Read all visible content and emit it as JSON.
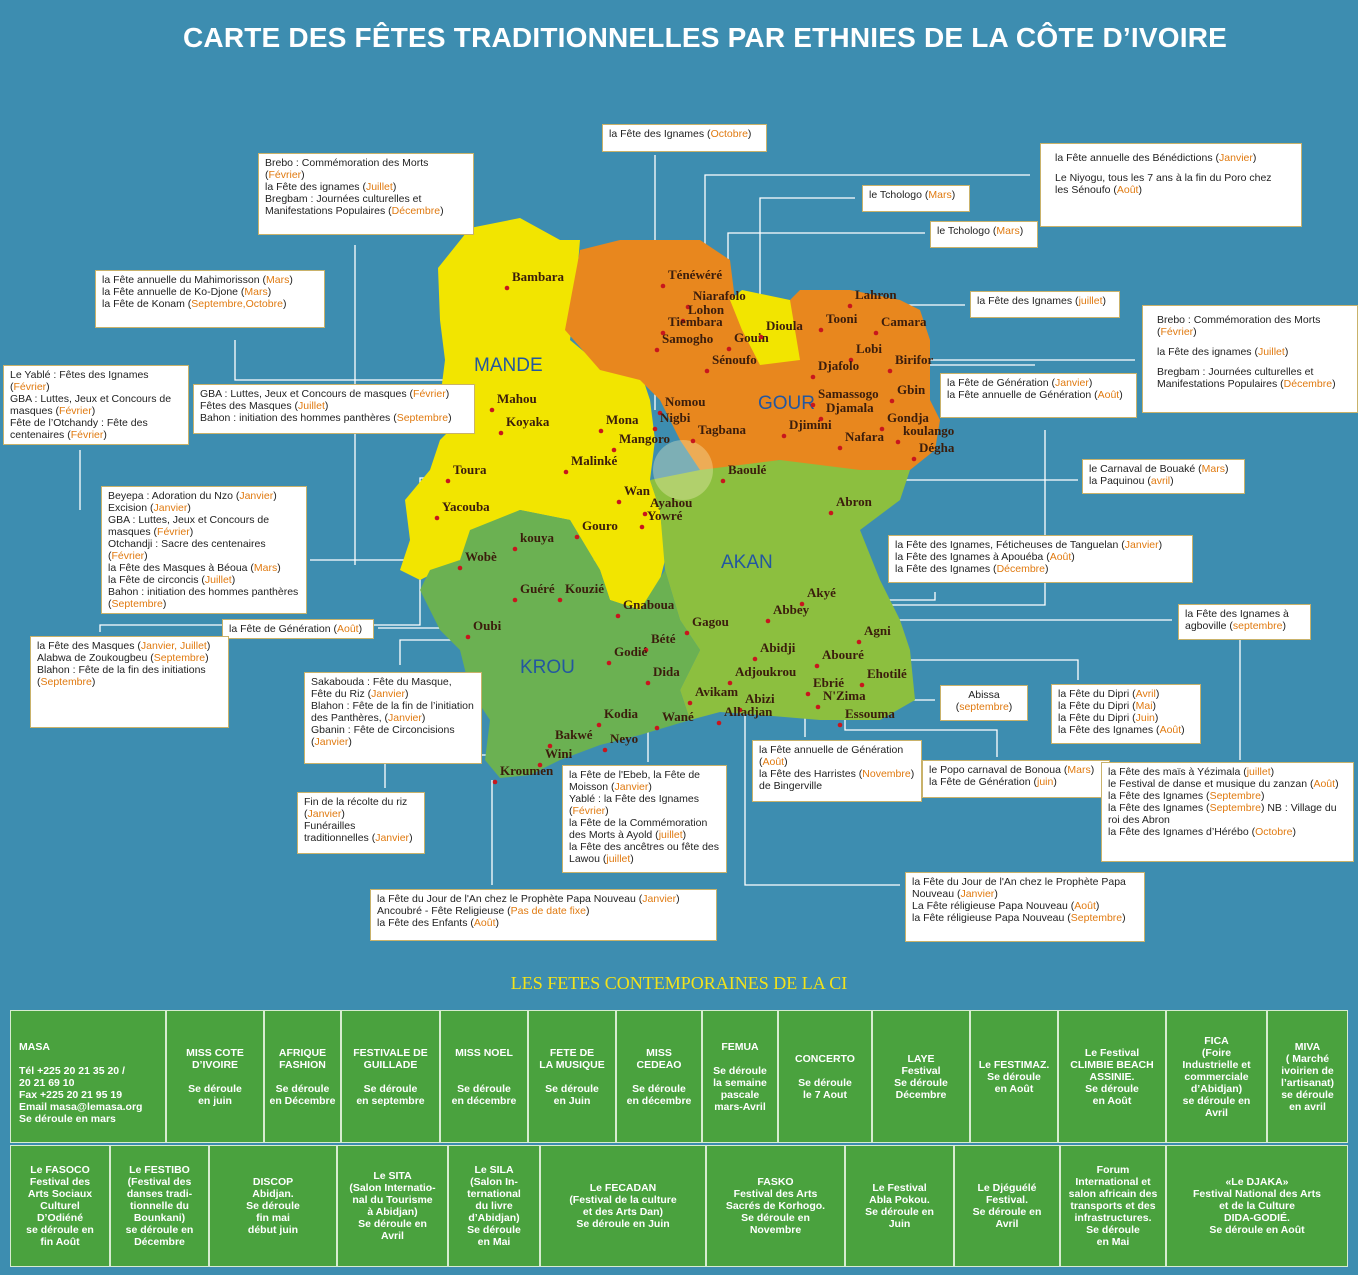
{
  "title": "CARTE DES FÊTES TRADITIONNELLES PAR ETHNIES DE LA CÔTE D’IVOIRE",
  "regions": [
    "MANDE",
    "GOUR",
    "AKAN",
    "KROU"
  ],
  "groups": [
    "Bambara",
    "Ténéwéré",
    "Niarafolo",
    "Lohon",
    "Tiembara",
    "Samogho",
    "Gouin",
    "Dioula",
    "Sénoufo",
    "Lahron",
    "Tooni",
    "Camara",
    "Lobi",
    "Birifor",
    "Djafolo",
    "Gbin",
    "Samassogo",
    "Djamala",
    "Gondja",
    "Nafara",
    "koulango",
    "Dégha",
    "Djimini",
    "Nomou",
    "Nigbi",
    "Tagbana",
    "Mona",
    "Mangoro",
    "Mahou",
    "Koyaka",
    "Malinké",
    "Toura",
    "Yacouba",
    "Baoulé",
    "Wan",
    "Ayahou",
    "Yowré",
    "Abron",
    "Gouro",
    "kouya",
    "Wobè",
    "Guéré",
    "Kouzié",
    "Gnaboua",
    "Gagou",
    "Akyé",
    "Abbey",
    "Agni",
    "Oubi",
    "Bété",
    "Godié",
    "Dida",
    "Abidji",
    "Abouré",
    "Ehotilé",
    "Adjoukrou",
    "Ebrié",
    "N'Zima",
    "Essouma",
    "Avikam",
    "Abizi",
    "Alladjan",
    "Kodia",
    "Wané",
    "Bakwé",
    "Neyo",
    "Wini",
    "Kroumen"
  ],
  "boxes": [
    [
      [
        "la Fête des Ignames (",
        "Octobre",
        ")"
      ]
    ],
    [
      [
        "Brebo : Commémoration des Morts (",
        "Février",
        ")"
      ],
      [
        "la Fête des ignames (",
        "Juillet",
        ")"
      ],
      [
        "Bregbam : Journées culturelles et Manifestations Populaires (",
        "Décembre",
        ")"
      ]
    ],
    [
      [
        "la Fête annuelle des Bénédictions (",
        "Janvier",
        ")"
      ],
      [
        "Le Niyogu, tous les 7 ans à la fin du Poro chez les Sénoufo (",
        "Août",
        ")"
      ]
    ],
    [
      [
        "le Tchologo (",
        "Mars",
        ")"
      ]
    ],
    [
      [
        "le Tchologo (",
        "Mars",
        ")"
      ]
    ],
    [
      [
        "la Fête annuelle du Mahimorisson (",
        "Mars",
        ")"
      ],
      [
        "la Fête annuelle de Ko-Djone (",
        "Mars",
        ")"
      ],
      [
        "la Fête de Konam (",
        "Septembre,Octobre",
        ")"
      ]
    ],
    [
      [
        "la Fête des Ignames (",
        "juillet",
        ")"
      ]
    ],
    [
      [
        "Brebo : Commémoration des Morts (",
        "Février",
        ")"
      ],
      [
        "la Fête des ignames (",
        "Juillet",
        ")"
      ],
      [
        "Bregbam : Journées culturelles et Manifestations Populaires (",
        "Décembre",
        ")"
      ]
    ],
    [
      [
        "Le Yablé : Fêtes des Ignames (",
        "Février",
        ")"
      ],
      [
        "GBA : Luttes, Jeux et Concours de masques (",
        "Février",
        ")"
      ],
      [
        "Fête de l’Otchandy : Fête des centenaires (",
        "Février",
        ")"
      ]
    ],
    [
      [
        "GBA : Luttes, Jeux et Concours de masques (",
        "Février",
        ")"
      ],
      [
        "Fêtes des Masques (",
        "Juillet",
        ")"
      ],
      [
        "Bahon : initiation des hommes panthères (",
        "Septembre",
        ")"
      ]
    ],
    [
      [
        "la Fête de Génération (",
        "Janvier",
        ")"
      ],
      [
        "la Fête annuelle de Génération (",
        "Août",
        ")"
      ]
    ],
    [
      [
        "le Carnaval de Bouaké (",
        "Mars",
        ")"
      ],
      [
        "la Paquinou (",
        "avril",
        ")"
      ]
    ],
    [
      [
        "Beyepa : Adoration du Nzo (",
        "Janvier",
        ")"
      ],
      [
        "Excision (",
        "Janvier",
        ")"
      ],
      [
        "GBA : Luttes, Jeux et Concours de masques (",
        "Février",
        ")"
      ],
      [
        "Otchandji : Sacre des centenaires (",
        "Février",
        ")"
      ],
      [
        "la Fête des Masques à Béoua (",
        "Mars",
        ")"
      ],
      [
        "la Fête de circoncis (",
        "Juillet",
        ")"
      ],
      [
        "Bahon : initiation des hommes panthères (",
        "Septembre",
        ")"
      ]
    ],
    [
      [
        "la Fête des Ignames, Féticheuses de Tanguelan (",
        "Janvier",
        ")"
      ],
      [
        "la Fête des Ignames à Apouéba (",
        "Août",
        ")"
      ],
      [
        "la Fête des Ignames (",
        "Décembre",
        ")"
      ]
    ],
    [
      [
        "la Fête de Génération (",
        "Août",
        ")"
      ]
    ],
    [
      [
        "la Fête des Ignames à agboville (",
        "septembre",
        ")"
      ]
    ],
    [
      [
        "la Fête des Masques (",
        "Janvier, Juillet",
        ")"
      ],
      [
        "Alabwa de Zoukougbeu (",
        "Septembre",
        ")"
      ],
      [
        "Blahon : Fête de la fin des initiations (",
        "Septembre",
        ")"
      ]
    ],
    [
      [
        "Sakabouda : Fête du Masque, Fête du Riz (",
        "Janvier",
        ")"
      ],
      [
        "Blahon : Fête de la fin de l’initiation des Panthères, (",
        "Janvier",
        ")"
      ],
      [
        "Gbanin : Fête de Circoncisions (",
        "Janvier",
        ")"
      ]
    ],
    [
      [
        "Abissa (",
        "septembre",
        ")"
      ]
    ],
    [
      [
        "la Fête du Dipri (",
        "Avril",
        ")"
      ],
      [
        "la Fête du Dipri (",
        "Mai",
        ")"
      ],
      [
        "la Fête du Dipri (",
        "Juin",
        ")"
      ],
      [
        "la Fête des Ignames (",
        "Août",
        ")"
      ]
    ],
    [
      [
        "la Fête annuelle de Génération (",
        "Août",
        ")"
      ],
      [
        "la Fête des Harristes (",
        "Novembre",
        ") de Bingerville"
      ]
    ],
    [
      [
        "le Popo carnaval de Bonoua (",
        "Mars",
        ")"
      ],
      [
        "la Fête de Génération (",
        "juin",
        ")"
      ]
    ],
    [
      [
        "la Fête de l'Ebeb,  la Fête de Moisson (",
        "Janvier",
        ")"
      ],
      [
        "Yablé : la Fête des Ignames (",
        "Février",
        ")"
      ],
      [
        "la Fête de la Commémoration des Morts à Ayold (",
        "juillet",
        ")"
      ],
      [
        "la Fête des ancêtres ou fête des Lawou (",
        "juillet",
        ")"
      ]
    ],
    [
      [
        "la Fête des maïs à Yézimala (",
        "juillet",
        ")"
      ],
      [
        "le Festival de danse et musique du zanzan (",
        "Août",
        ")"
      ],
      [
        "la Fête des Ignames (",
        "Septembre",
        ")"
      ],
      [
        "la Fête des Ignames (",
        "Septembre",
        ") NB : Village du roi des Abron"
      ],
      [
        "la Fête des Ignames d’Hérébo (",
        "Octobre",
        ")"
      ]
    ],
    [
      [
        "Fin de la récolte du riz (",
        "Janvier",
        ")"
      ],
      [
        "Funérailles traditionnelles (",
        "Janvier",
        ")"
      ]
    ],
    [
      [
        "la Fête du Jour de l'An chez le Prophète Papa Nouveau (",
        "Janvier",
        ")"
      ],
      [
        "Ancoubré - Fête Religieuse (",
        "Pas de date fixe",
        ")"
      ],
      [
        "la Fête des Enfants (",
        "Août",
        ")"
      ]
    ],
    [
      [
        "la Fête du Jour de l'An chez le Prophète Papa Nouveau (",
        "Janvier",
        ")"
      ],
      [
        "La Fête réligieuse Papa Nouveau (",
        "Août",
        ")"
      ],
      [
        "la Fête réligieuse Papa Nouveau (",
        "Septembre",
        ")"
      ]
    ]
  ],
  "contemporary": {
    "title": "LES FETES CONTEMPORAINES DE LA CI",
    "rows": [
      [
        "MASA\n\nTél  +225 20 21 35 20 /\n 20 21 69 10\nFax   +225 20 21 95 19\nEmail  masa@lemasa.org\nSe déroule en mars",
        "MISS COTE\nD’IVOIRE\n\nSe déroule\nen juin",
        "AFRIQUE\nFASHION\n\nSe déroule\nen Décembre",
        "FESTIVALE DE\nGUILLADE\n\nSe déroule\nen septembre",
        "MISS NOEL\n\n\nSe déroule\nen décembre",
        "FETE DE\nLA MUSIQUE\n\nSe déroule\nen Juin",
        "MISS\nCEDEAO\n\nSe déroule\nen décembre",
        "FEMUA\n\nSe déroule\nla semaine\npascale\nmars-Avril",
        "CONCERTO\n\nSe déroule\nle 7 Aout",
        "LAYE\nFestival\nSe déroule\nDécembre",
        "Le FESTIMAZ.\nSe déroule\nen Août",
        "Le Festival\nCLIMBIE BEACH\nASSINIE.\nSe déroule\nen Août",
        "FICA\n(Foire\nIndustrielle et\ncommerciale\nd’Abidjan)\nse déroule en\nAvril",
        "MIVA\n( Marché\nivoirien de\nl’artisanat)\nse déroule\nen avril"
      ],
      [
        "Le FASOCO\nFestival des\nArts Sociaux\nCulturel\nD’Odiéné\nse déroule en\nfin Août",
        "Le FESTIBO\n(Festival des\ndanses tradi-\ntionnelle du\nBounkani)\nse déroule en\nDécembre",
        "DISCOP\nAbidjan.\nSe déroule\nfin mai\ndébut juin",
        "Le SITA\n(Salon Internatio-\nnal du Tourisme\nà Abidjan)\nSe déroule en\nAvril",
        "Le SILA\n(Salon In-\nternational\ndu livre\nd’Abidjan)\nSe déroule\nen Mai",
        "Le FECADAN\n(Festival de la culture\net des Arts Dan)\nSe déroule en Juin",
        "FASKO\nFestival des Arts\nSacrés de  Korhogo.\nSe déroule en\nNovembre",
        "Le Festival\nAbla Pokou.\nSe déroule en\nJuin",
        "Le Djéguélé\nFestival.\nSe déroule en\nAvril",
        "Forum\nInternational et\nsalon africain des\ntransports et des\ninfrastructures.\nSe déroule\nen Mai",
        "«Le DJAKA»\nFestival National des Arts\net de la Culture\nDIDA-GODIÉ.\nSe déroule en Août"
      ]
    ]
  }
}
